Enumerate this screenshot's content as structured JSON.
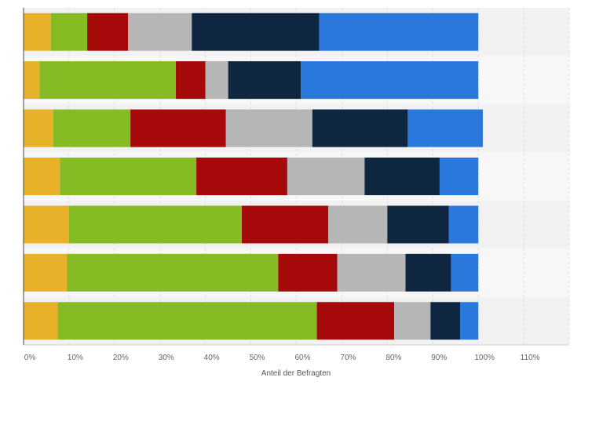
{
  "chart_data": {
    "type": "bar",
    "orientation": "horizontal",
    "stacked": true,
    "xlabel": "Anteil der Befragten",
    "ylabel": "",
    "xlim": [
      0,
      120
    ],
    "x_ticks": [
      "0%",
      "10%",
      "20%",
      "30%",
      "40%",
      "50%",
      "60%",
      "70%",
      "80%",
      "90%",
      "100%",
      "110%"
    ],
    "categories": [
      "",
      "",
      "",
      "",
      "",
      "",
      ""
    ],
    "series": [
      {
        "color": "#e8b12a",
        "values": [
          6,
          3.5,
          6.5,
          8,
          10,
          9.5,
          7.5
        ]
      },
      {
        "color": "#86bb24",
        "values": [
          8,
          30,
          17,
          30,
          38,
          46.5,
          57
        ]
      },
      {
        "color": "#a50909",
        "values": [
          9,
          6.5,
          21,
          20,
          19,
          13,
          17
        ]
      },
      {
        "color": "#b6b6b6",
        "values": [
          14,
          5,
          19,
          17,
          13,
          15,
          8
        ]
      },
      {
        "color": "#0e2640",
        "values": [
          28,
          16,
          21,
          16.5,
          13.5,
          10,
          6.5
        ]
      },
      {
        "color": "#2a78dc",
        "values": [
          35,
          39,
          16.5,
          8.5,
          6.5,
          6,
          4
        ]
      }
    ],
    "grid": true,
    "legend": "none"
  }
}
